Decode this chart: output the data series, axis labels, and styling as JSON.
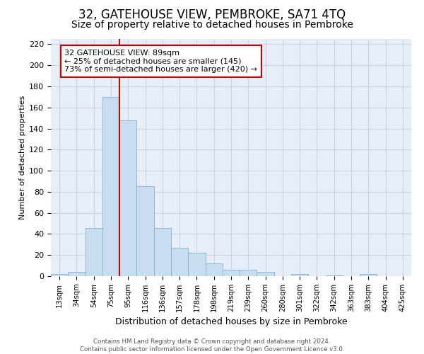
{
  "title": "32, GATEHOUSE VIEW, PEMBROKE, SA71 4TQ",
  "subtitle": "Size of property relative to detached houses in Pembroke",
  "xlabel": "Distribution of detached houses by size in Pembroke",
  "ylabel": "Number of detached properties",
  "bar_labels": [
    "13sqm",
    "34sqm",
    "54sqm",
    "75sqm",
    "95sqm",
    "116sqm",
    "136sqm",
    "157sqm",
    "178sqm",
    "198sqm",
    "219sqm",
    "239sqm",
    "260sqm",
    "280sqm",
    "301sqm",
    "322sqm",
    "342sqm",
    "363sqm",
    "383sqm",
    "404sqm",
    "425sqm"
  ],
  "bar_values": [
    2,
    4,
    46,
    170,
    148,
    85,
    46,
    27,
    22,
    12,
    6,
    6,
    4,
    0,
    2,
    0,
    1,
    0,
    2,
    0,
    0
  ],
  "bar_color": "#c9ddf0",
  "bar_edge_color": "#7fb3d3",
  "ylim": [
    0,
    225
  ],
  "yticks": [
    0,
    20,
    40,
    60,
    80,
    100,
    120,
    140,
    160,
    180,
    200,
    220
  ],
  "vline_x": 3.5,
  "vline_color": "#cc0000",
  "annotation_title": "32 GATEHOUSE VIEW: 89sqm",
  "annotation_line1": "← 25% of detached houses are smaller (145)",
  "annotation_line2": "73% of semi-detached houses are larger (420) →",
  "annotation_box_color": "#ffffff",
  "annotation_box_edge": "#cc0000",
  "footer_line1": "Contains HM Land Registry data © Crown copyright and database right 2024.",
  "footer_line2": "Contains public sector information licensed under the Open Government Licence v3.0.",
  "plot_bg_color": "#e8eef7",
  "grid_color": "#c8d4e4",
  "title_fontsize": 12,
  "subtitle_fontsize": 10,
  "ylabel_fontsize": 8,
  "xlabel_fontsize": 9
}
